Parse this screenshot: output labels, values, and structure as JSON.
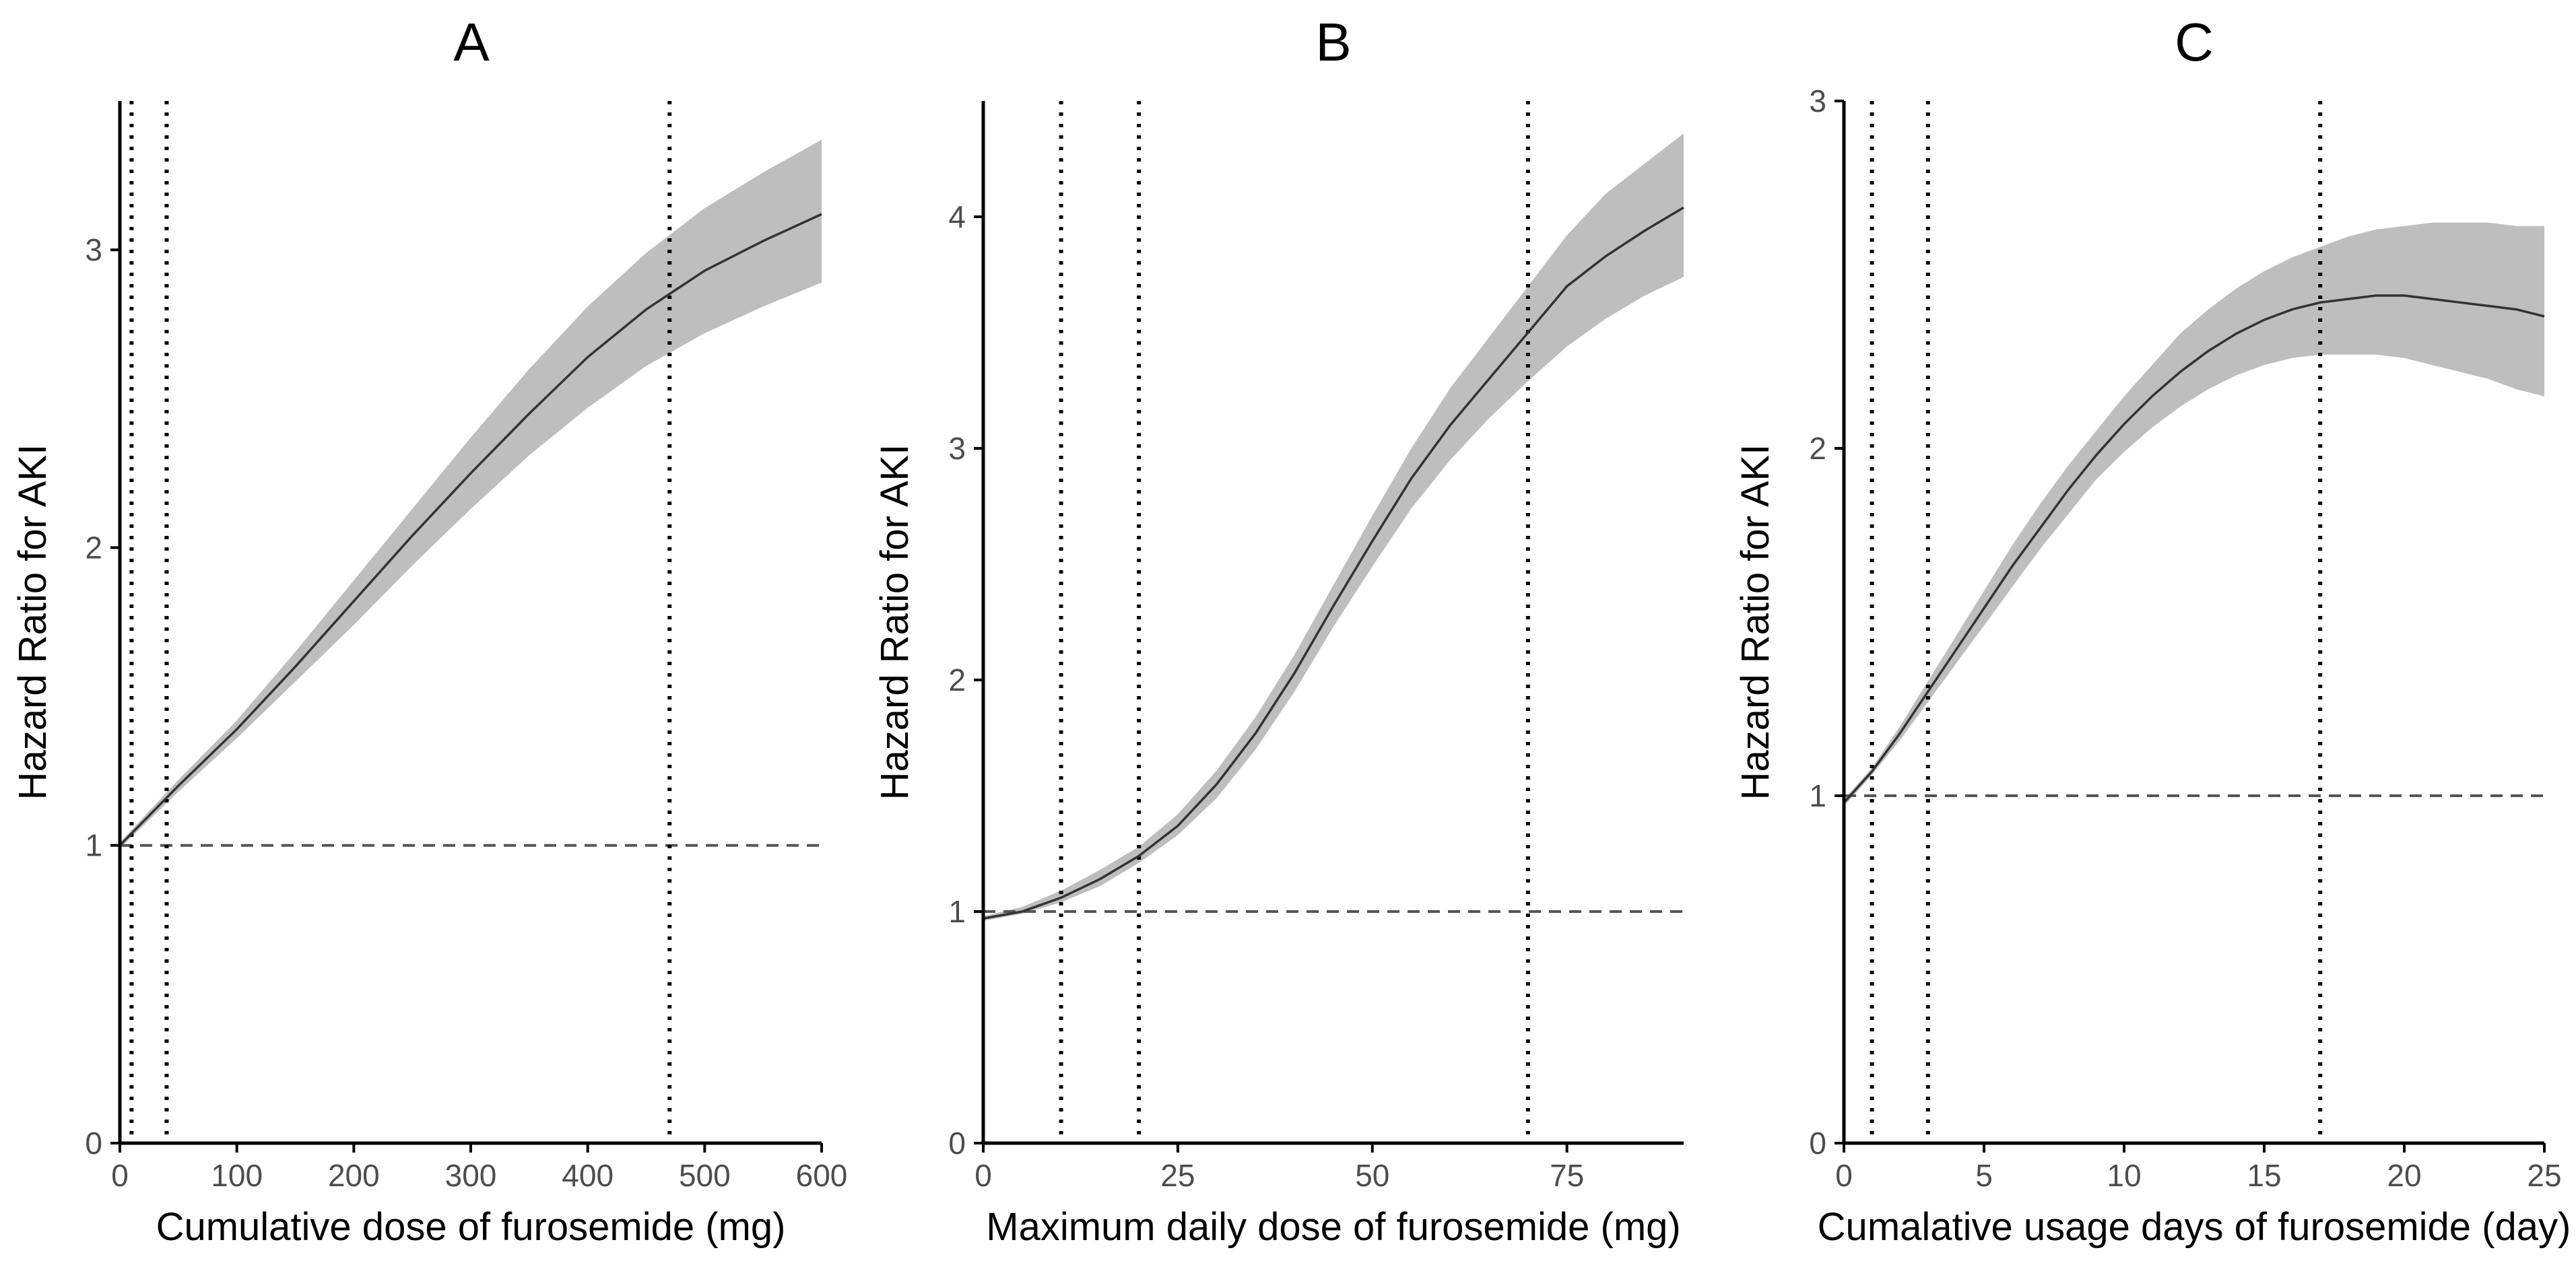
{
  "chart_data": [
    {
      "panel": "A",
      "type": "line",
      "title": "A",
      "xlabel": "Cumulative dose of furosemide (mg)",
      "ylabel": "Hazard Ratio for AKI",
      "xlim": [
        0,
        600
      ],
      "ylim": [
        0,
        3.5
      ],
      "xticks": [
        0,
        100,
        200,
        300,
        400,
        500,
        600
      ],
      "yticks": [
        0,
        1,
        2,
        3
      ],
      "reference_line_y": 1,
      "vertical_lines_x": [
        10,
        40,
        470
      ],
      "curve": {
        "x": [
          0,
          50,
          100,
          150,
          200,
          250,
          300,
          350,
          400,
          450,
          500,
          550,
          600
        ],
        "y": [
          1.0,
          1.2,
          1.39,
          1.6,
          1.82,
          2.04,
          2.25,
          2.45,
          2.64,
          2.8,
          2.93,
          3.03,
          3.12
        ]
      },
      "ci_band": {
        "x": [
          0,
          50,
          100,
          150,
          200,
          250,
          300,
          350,
          400,
          450,
          500,
          550,
          600
        ],
        "lower": [
          0.99,
          1.18,
          1.36,
          1.55,
          1.74,
          1.94,
          2.13,
          2.31,
          2.47,
          2.61,
          2.72,
          2.81,
          2.89
        ],
        "upper": [
          1.01,
          1.22,
          1.42,
          1.65,
          1.89,
          2.13,
          2.37,
          2.6,
          2.81,
          2.99,
          3.14,
          3.26,
          3.37
        ]
      }
    },
    {
      "panel": "B",
      "type": "line",
      "title": "B",
      "xlabel": "Maximum daily dose of furosemide (mg)",
      "ylabel": "Hazard Ratio for AKI",
      "xlim": [
        0,
        90
      ],
      "ylim": [
        0,
        4.5
      ],
      "xticks": [
        0,
        25,
        50,
        75
      ],
      "xtick_labels": [
        "0",
        "25",
        "50",
        "75"
      ],
      "yticks": [
        0,
        1,
        2,
        3,
        4
      ],
      "reference_line_y": 1,
      "vertical_lines_x": [
        10,
        20,
        70
      ],
      "curve": {
        "x": [
          0,
          5,
          10,
          15,
          20,
          25,
          30,
          35,
          40,
          45,
          50,
          55,
          60,
          65,
          70,
          75,
          80,
          85,
          90
        ],
        "y": [
          0.97,
          1.0,
          1.06,
          1.14,
          1.24,
          1.37,
          1.55,
          1.77,
          2.03,
          2.32,
          2.6,
          2.87,
          3.1,
          3.3,
          3.5,
          3.7,
          3.83,
          3.94,
          4.04
        ]
      },
      "ci_band": {
        "x": [
          0,
          5,
          10,
          15,
          20,
          25,
          30,
          35,
          40,
          45,
          50,
          55,
          60,
          65,
          70,
          75,
          80,
          85,
          90
        ],
        "lower": [
          0.96,
          0.99,
          1.04,
          1.11,
          1.21,
          1.33,
          1.49,
          1.7,
          1.95,
          2.23,
          2.49,
          2.74,
          2.95,
          3.13,
          3.29,
          3.44,
          3.56,
          3.66,
          3.74
        ],
        "upper": [
          0.98,
          1.02,
          1.09,
          1.18,
          1.28,
          1.42,
          1.61,
          1.84,
          2.11,
          2.41,
          2.71,
          3.0,
          3.26,
          3.48,
          3.7,
          3.92,
          4.1,
          4.23,
          4.36
        ]
      }
    },
    {
      "panel": "C",
      "type": "line",
      "title": "C",
      "xlabel": "Cumalative usage days of furosemide (day)",
      "ylabel": "Hazard Ratio for AKI",
      "xlim": [
        0,
        25
      ],
      "ylim": [
        0,
        3
      ],
      "xticks": [
        0,
        5,
        10,
        15,
        20,
        25
      ],
      "yticks": [
        0,
        1,
        2,
        3
      ],
      "reference_line_y": 1,
      "vertical_lines_x": [
        1,
        3,
        17
      ],
      "curve": {
        "x": [
          0,
          1,
          2,
          3,
          4,
          5,
          6,
          7,
          8,
          9,
          10,
          11,
          12,
          13,
          14,
          15,
          16,
          17,
          18,
          19,
          20,
          21,
          22,
          23,
          24,
          25
        ],
        "y": [
          0.98,
          1.07,
          1.18,
          1.3,
          1.42,
          1.54,
          1.66,
          1.77,
          1.88,
          1.98,
          2.07,
          2.15,
          2.22,
          2.28,
          2.33,
          2.37,
          2.4,
          2.42,
          2.43,
          2.44,
          2.44,
          2.43,
          2.42,
          2.41,
          2.4,
          2.38
        ]
      },
      "ci_band": {
        "x": [
          0,
          1,
          2,
          3,
          4,
          5,
          6,
          7,
          8,
          9,
          10,
          11,
          12,
          13,
          14,
          15,
          16,
          17,
          18,
          19,
          20,
          21,
          22,
          23,
          24,
          25
        ],
        "lower": [
          0.97,
          1.06,
          1.16,
          1.27,
          1.38,
          1.49,
          1.6,
          1.71,
          1.81,
          1.91,
          1.99,
          2.06,
          2.12,
          2.17,
          2.21,
          2.24,
          2.26,
          2.27,
          2.27,
          2.27,
          2.26,
          2.24,
          2.22,
          2.2,
          2.17,
          2.15
        ],
        "upper": [
          0.99,
          1.08,
          1.2,
          1.33,
          1.46,
          1.59,
          1.72,
          1.84,
          1.95,
          2.05,
          2.15,
          2.24,
          2.33,
          2.4,
          2.46,
          2.51,
          2.55,
          2.58,
          2.61,
          2.63,
          2.64,
          2.65,
          2.65,
          2.65,
          2.64,
          2.64
        ]
      }
    }
  ],
  "style": {
    "band_color": "#bebebe",
    "curve_color": "#333333",
    "axis_color": "#000000",
    "vline_color": "#000000",
    "refline_color": "#555555",
    "tick_label_color": "#4d4d4d"
  }
}
